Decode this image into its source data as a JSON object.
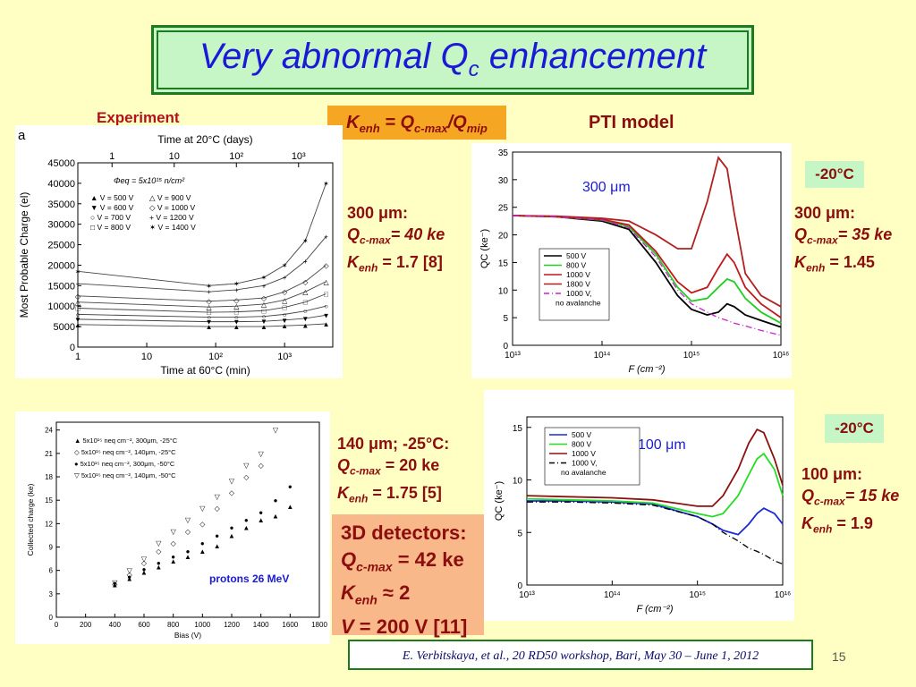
{
  "slide": {
    "title_main": "Very abnormal Q",
    "title_sub": "c",
    "title_end": " enhancement",
    "page_number": "15",
    "reference": "E. Verbitskaya, et al., 20 RD50 workshop, Bari, May 30 – June 1, 2012"
  },
  "labels": {
    "experiment": "Experiment",
    "pti_model": "PTI model",
    "panel_a_letter": "a"
  },
  "kenh_formula": {
    "k": "K",
    "k_sub": "enh",
    "eq": " = Q",
    "q_sub": "c-max",
    "div": "/Q",
    "mip_sub": "mip"
  },
  "info_exp_300": {
    "thickness": "300 μm:",
    "q": "Q",
    "q_sub": "c-max",
    "q_val": "= 40 ke",
    "k": "K",
    "k_sub": "enh",
    "k_val": " = 1.7 [8]"
  },
  "info_pti_300": {
    "thickness": "300 μm:",
    "q": "Q",
    "q_sub": "c-max",
    "q_val": "= 35 ke",
    "k": "K",
    "k_sub": "enh",
    "k_val": " = 1.45"
  },
  "info_exp_140": {
    "thickness": "140 μm; -25°C:",
    "q": "Q",
    "q_sub": "c-max",
    "q_val": " = 20 ke",
    "k": "K",
    "k_sub": "enh",
    "k_val": " = 1.75 [5]"
  },
  "info_pti_100": {
    "thickness": "100 μm:",
    "q": "Q",
    "q_sub": "c-max",
    "q_val": "= 15 ke",
    "k": "K",
    "k_sub": "enh",
    "k_val": " = 1.9"
  },
  "temp_badges": [
    "-20°C",
    "-20°C"
  ],
  "detectors_3d": {
    "heading": "3D detectors:",
    "q": "Q",
    "q_sub": "c-max",
    "q_val": " = 42 ke",
    "k": "K",
    "k_sub": "enh",
    "k_val": " ≈ 2",
    "v": "V",
    "v_val": " = 200 V [11]"
  },
  "chart_data": [
    {
      "type": "line",
      "id": "exp-mpc",
      "xlabel": "Time at 60°C (min)",
      "ylabel": "Most Probable Charge (el)",
      "top_label": "Time at 20°C (days)",
      "xscale": "log",
      "xlim": [
        1,
        5000
      ],
      "ylim": [
        0,
        45000
      ],
      "yticks": [
        0,
        5000,
        10000,
        15000,
        20000,
        25000,
        30000,
        35000,
        40000,
        45000
      ],
      "xtick_labels": [
        "1",
        "10",
        "10²",
        "10³"
      ],
      "top_tick_labels": [
        "1",
        "10",
        "10²",
        "10³"
      ],
      "annotation": "Φeq = 5x10¹⁵ n/cm²",
      "legend": [
        "V = 500 V",
        "V = 600 V",
        "V = 700 V",
        "V = 800 V",
        "V = 900 V",
        "V = 1000 V",
        "V = 1200 V",
        "V = 1400 V"
      ],
      "x": [
        1,
        80,
        200,
        500,
        1000,
        2000,
        4000
      ],
      "series": [
        {
          "name": "V = 500 V",
          "values": [
            5500,
            5000,
            5000,
            5000,
            5200,
            5400,
            5700
          ]
        },
        {
          "name": "V = 600 V",
          "values": [
            6800,
            6200,
            6200,
            6300,
            6600,
            7000,
            7800
          ]
        },
        {
          "name": "V = 700 V",
          "values": [
            8000,
            7300,
            7300,
            7500,
            8000,
            8800,
            10000
          ]
        },
        {
          "name": "V = 800 V",
          "values": [
            9500,
            8500,
            8600,
            8900,
            9700,
            11000,
            13000
          ]
        },
        {
          "name": "V = 900 V",
          "values": [
            11000,
            9800,
            10000,
            10500,
            11500,
            13500,
            16000
          ]
        },
        {
          "name": "V = 1000 V",
          "values": [
            12500,
            11200,
            11500,
            12000,
            13500,
            16000,
            20000
          ]
        },
        {
          "name": "V = 1200 V",
          "values": [
            15500,
            13500,
            14000,
            15000,
            17000,
            21000,
            27000
          ]
        },
        {
          "name": "V = 1400 V",
          "values": [
            18500,
            15000,
            15500,
            17000,
            20000,
            26000,
            40000
          ]
        }
      ]
    },
    {
      "type": "line",
      "id": "pti-300",
      "xlabel": "F (cm⁻²)",
      "ylabel": "QC (ke⁻)",
      "annotation": "300 μm",
      "xscale": "log",
      "xlim": [
        10000000000000.0,
        1e+16
      ],
      "ylim": [
        0,
        35
      ],
      "yticks": [
        0,
        5,
        10,
        15,
        20,
        25,
        30,
        35
      ],
      "xtick_labels": [
        "10¹³",
        "10¹⁴",
        "10¹⁵",
        "10¹⁶"
      ],
      "legend": [
        "500 V",
        "800 V",
        "1000 V",
        "1800 V",
        "1000 V,",
        "no avalanche"
      ],
      "colors": {
        "500 V": "#000000",
        "800 V": "#22cc22",
        "1000 V": "#c0181b",
        "1800 V": "#b02020",
        "1000 V, no avalanche": "#cc22cc"
      },
      "x": [
        10000000000000.0,
        30000000000000.0,
        100000000000000.0,
        200000000000000.0,
        400000000000000.0,
        700000000000000.0,
        1000000000000000.0,
        1500000000000000.0,
        2000000000000000.0,
        2500000000000000.0,
        3000000000000000.0,
        4000000000000000.0,
        6000000000000000.0,
        1e+16
      ],
      "series": [
        {
          "name": "500 V",
          "values": [
            23.5,
            23.3,
            22.5,
            21.0,
            15.0,
            9.0,
            6.5,
            5.5,
            6.0,
            7.5,
            7.0,
            5.5,
            4.5,
            3.3
          ]
        },
        {
          "name": "800 V",
          "values": [
            23.5,
            23.3,
            22.7,
            21.5,
            16.5,
            10.5,
            8.0,
            8.5,
            10.5,
            12.0,
            11.5,
            8.5,
            6.0,
            4.0
          ]
        },
        {
          "name": "1000 V",
          "values": [
            23.5,
            23.3,
            22.8,
            21.8,
            17.0,
            11.5,
            9.5,
            10.5,
            14.0,
            16.5,
            15.0,
            10.5,
            7.5,
            5.0
          ]
        },
        {
          "name": "1800 V",
          "values": [
            23.5,
            23.4,
            23.0,
            22.5,
            20.0,
            17.5,
            17.5,
            26.0,
            34.0,
            32.0,
            24.0,
            13.0,
            9.0,
            7.0
          ]
        },
        {
          "name": "1000 V, no avalanche",
          "values": [
            23.5,
            23.3,
            22.7,
            21.3,
            16.0,
            10.0,
            7.5,
            6.0,
            5.0,
            4.5,
            4.0,
            3.5,
            2.7,
            1.8
          ]
        }
      ]
    },
    {
      "type": "scatter",
      "id": "exp-140",
      "xlabel": "Bias (V)",
      "ylabel": "Collected charge (ke)",
      "annotation": "protons 26 MeV",
      "xlim": [
        0,
        1800
      ],
      "ylim": [
        0,
        25
      ],
      "xticks": [
        0,
        200,
        400,
        600,
        800,
        1000,
        1200,
        1400,
        1600,
        1800
      ],
      "yticks": [
        0,
        3,
        6,
        9,
        12,
        15,
        18,
        21,
        24
      ],
      "legend": [
        "5x10¹⁵ neq cm⁻², 300μm, -25°C",
        "5x10¹⁵ neq cm⁻², 140μm, -25°C",
        "5x10¹⁵ neq cm⁻², 300μm, -50°C",
        "5x10¹⁵ neq cm⁻², 140μm, -50°C"
      ],
      "series": [
        {
          "name": "5x10¹⁵ neq cm⁻², 300μm, -25°C",
          "x": [
            400,
            500,
            600,
            700,
            800,
            900,
            1000,
            1100,
            1200,
            1300,
            1400,
            1500,
            1600
          ],
          "values": [
            4.2,
            5.0,
            5.8,
            6.5,
            7.2,
            7.8,
            8.5,
            9.2,
            10.5,
            11.5,
            12.5,
            13.0,
            14.2
          ]
        },
        {
          "name": "5x10¹⁵ neq cm⁻², 140μm, -25°C",
          "x": [
            400,
            500,
            600,
            700,
            800,
            900,
            1000,
            1100,
            1200,
            1300,
            1400
          ],
          "values": [
            4.3,
            5.5,
            7.0,
            8.5,
            9.5,
            11.0,
            12.0,
            14.0,
            16.0,
            18.0,
            19.5
          ]
        },
        {
          "name": "5x10¹⁵ neq cm⁻², 300μm, -50°C",
          "x": [
            400,
            500,
            600,
            700,
            800,
            900,
            1000,
            1100,
            1200,
            1300,
            1400,
            1500,
            1600
          ],
          "values": [
            4.4,
            5.2,
            6.2,
            7.0,
            7.8,
            8.5,
            9.5,
            10.5,
            11.5,
            12.5,
            13.5,
            15.0,
            16.8
          ]
        },
        {
          "name": "5x10¹⁵ neq cm⁻², 140μm, -50°C",
          "x": [
            400,
            500,
            600,
            700,
            800,
            900,
            1000,
            1100,
            1200,
            1300,
            1400,
            1500
          ],
          "values": [
            4.5,
            6.0,
            7.5,
            9.5,
            11.0,
            12.5,
            14.0,
            15.5,
            17.5,
            19.5,
            21.0,
            24.0
          ]
        }
      ]
    },
    {
      "type": "line",
      "id": "pti-100",
      "xlabel": "F (cm⁻²)",
      "ylabel": "QC (ke⁻)",
      "annotation": "100 μm",
      "xscale": "log",
      "xlim": [
        10000000000000.0,
        1e+16
      ],
      "ylim": [
        0,
        16
      ],
      "yticks": [
        0,
        5,
        10,
        15
      ],
      "xtick_labels": [
        "10¹³",
        "10¹⁴",
        "10¹⁵",
        "10¹⁶"
      ],
      "legend": [
        "500 V",
        "800 V",
        "1000 V",
        "1000 V,",
        "no avalanche"
      ],
      "colors": {
        "500 V": "#1a2ad6",
        "800 V": "#22dd22",
        "1000 V": "#8b1010",
        "1000 V, no avalanche": "#000000"
      },
      "x": [
        10000000000000.0,
        30000000000000.0,
        100000000000000.0,
        300000000000000.0,
        1000000000000000.0,
        1500000000000000.0,
        2000000000000000.0,
        3000000000000000.0,
        4000000000000000.0,
        5000000000000000.0,
        6000000000000000.0,
        8000000000000000.0,
        1e+16
      ],
      "series": [
        {
          "name": "500 V",
          "values": [
            8.0,
            8.0,
            7.9,
            7.7,
            6.5,
            5.8,
            5.2,
            4.8,
            5.8,
            6.8,
            7.3,
            6.8,
            5.8
          ]
        },
        {
          "name": "800 V",
          "values": [
            8.2,
            8.1,
            8.0,
            7.8,
            6.8,
            6.5,
            6.8,
            8.5,
            10.5,
            12.0,
            12.5,
            11.0,
            8.5
          ]
        },
        {
          "name": "1000 V",
          "values": [
            8.5,
            8.4,
            8.3,
            8.1,
            7.5,
            7.5,
            8.5,
            11.0,
            13.5,
            14.8,
            14.5,
            12.0,
            9.5
          ]
        },
        {
          "name": "1000 V, no avalanche",
          "values": [
            7.9,
            7.9,
            7.8,
            7.6,
            6.5,
            5.8,
            5.0,
            4.2,
            3.5,
            3.2,
            2.9,
            2.3,
            2.0
          ]
        }
      ]
    }
  ]
}
